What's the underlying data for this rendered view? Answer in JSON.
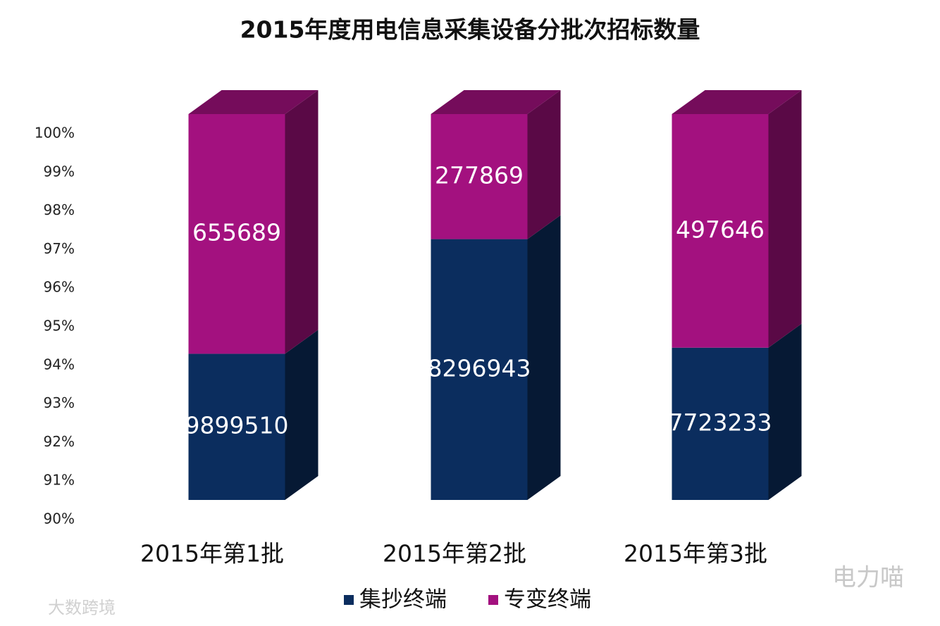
{
  "chart_data": {
    "type": "bar",
    "stacked": "percent",
    "title": "2015年度用电信息采集设备分批次招标数量",
    "categories": [
      "2015年第1批",
      "2015年第2批",
      "2015年第3批"
    ],
    "series": [
      {
        "name": "集抄终端",
        "color": "#0b2d5e",
        "values": [
          9899510,
          8296943,
          7723233
        ]
      },
      {
        "name": "专变终端",
        "color": "#a3117f",
        "values": [
          655689,
          277869,
          497646
        ]
      }
    ],
    "ylim": [
      90,
      100
    ],
    "yticks": [
      {
        "value": 90,
        "label": "90%"
      },
      {
        "value": 91,
        "label": "91%"
      },
      {
        "value": 92,
        "label": "92%"
      },
      {
        "value": 93,
        "label": "93%"
      },
      {
        "value": 94,
        "label": "94%"
      },
      {
        "value": 95,
        "label": "95%"
      },
      {
        "value": 96,
        "label": "96%"
      },
      {
        "value": 97,
        "label": "97%"
      },
      {
        "value": 98,
        "label": "98%"
      },
      {
        "value": 99,
        "label": "99%"
      },
      {
        "value": 100,
        "label": "100%"
      }
    ],
    "legend": "bottom"
  },
  "watermarks": [
    "电力喵",
    "大数跨境"
  ]
}
